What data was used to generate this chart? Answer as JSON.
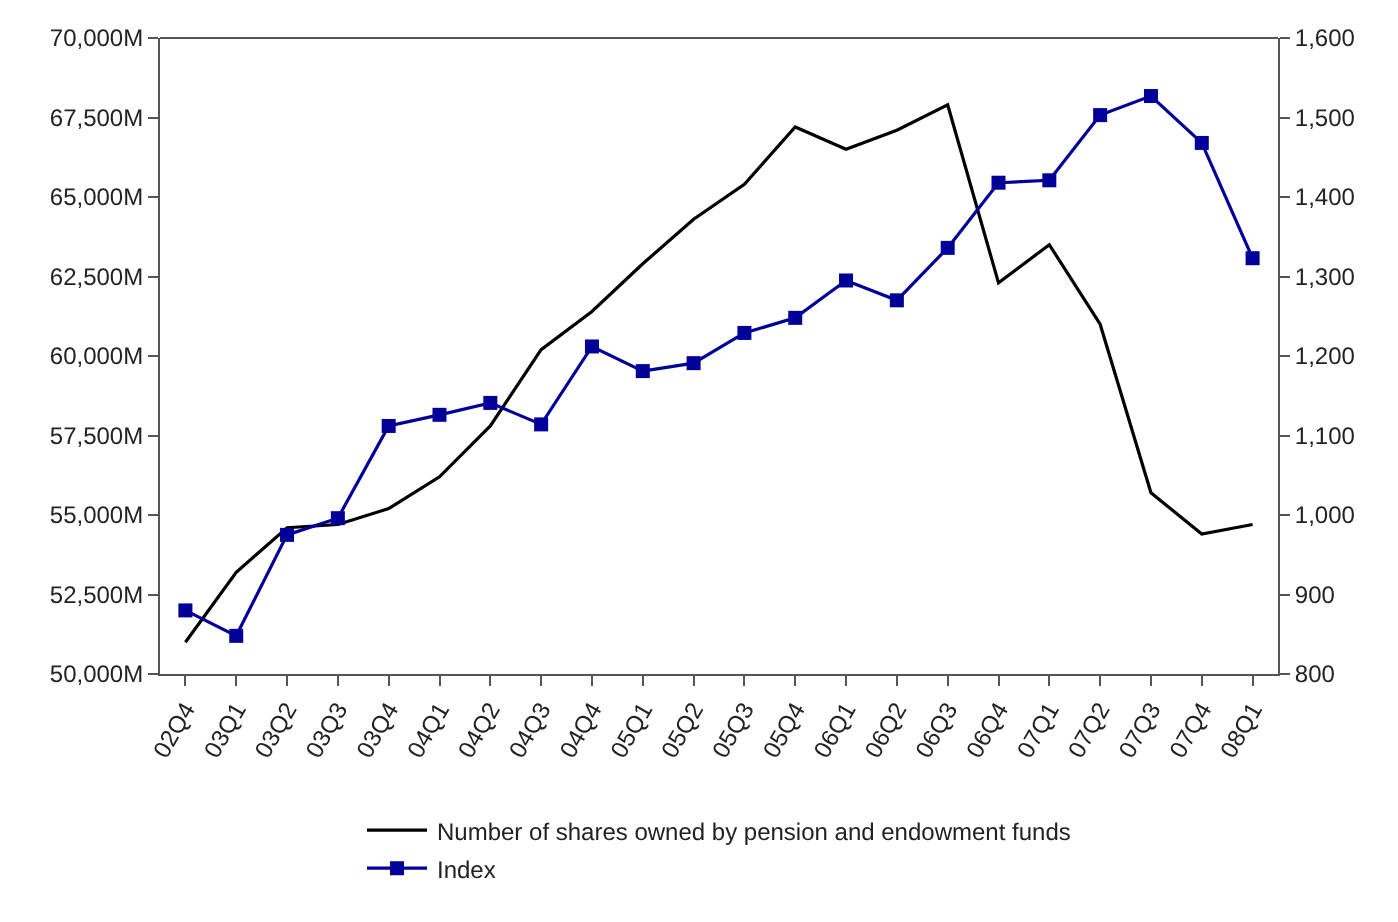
{
  "chart_data": {
    "type": "line",
    "categories": [
      "02Q4",
      "03Q1",
      "03Q2",
      "03Q3",
      "03Q4",
      "04Q1",
      "04Q2",
      "04Q3",
      "04Q4",
      "05Q1",
      "05Q2",
      "05Q3",
      "05Q4",
      "06Q1",
      "06Q2",
      "06Q3",
      "06Q4",
      "07Q1",
      "07Q2",
      "07Q3",
      "07Q4",
      "08Q1"
    ],
    "series": [
      {
        "name": "Number of shares owned by pension and endowment funds",
        "color": "#000000",
        "marker": "none",
        "values": [
          51000,
          53200,
          54600,
          54700,
          55200,
          56200,
          57800,
          60200,
          61400,
          62900,
          64300,
          65400,
          67200,
          66500,
          67100,
          67900,
          62300,
          63500,
          61000,
          55700,
          54400,
          54700
        ]
      },
      {
        "name": "Index",
        "color": "#000099",
        "marker": "square",
        "axis": "y2",
        "values": [
          880,
          848,
          975,
          996,
          1112,
          1126,
          1141,
          1114,
          1212,
          1181,
          1191,
          1229,
          1248,
          1295,
          1270,
          1336,
          1418,
          1421,
          1503,
          1527,
          1468,
          1323
        ]
      }
    ],
    "ylim": [
      50000,
      70000
    ],
    "yticks": [
      {
        "value": 50000,
        "label": "50,000M"
      },
      {
        "value": 52500,
        "label": "52,500M"
      },
      {
        "value": 55000,
        "label": "55,000M"
      },
      {
        "value": 57500,
        "label": "57,500M"
      },
      {
        "value": 60000,
        "label": "60,000M"
      },
      {
        "value": 62500,
        "label": "62,500M"
      },
      {
        "value": 65000,
        "label": "65,000M"
      },
      {
        "value": 67500,
        "label": "67,500M"
      },
      {
        "value": 70000,
        "label": "70,000M"
      }
    ],
    "y2lim": [
      800,
      1600
    ],
    "y2ticks": [
      {
        "value": 800,
        "label": "800"
      },
      {
        "value": 900,
        "label": "900"
      },
      {
        "value": 1000,
        "label": "1,000"
      },
      {
        "value": 1100,
        "label": "1,100"
      },
      {
        "value": 1200,
        "label": "1,200"
      },
      {
        "value": 1300,
        "label": "1,300"
      },
      {
        "value": 1400,
        "label": "1,400"
      },
      {
        "value": 1500,
        "label": "1,500"
      },
      {
        "value": 1600,
        "label": "1,600"
      }
    ],
    "legend": "bottom",
    "line_style": "solid"
  }
}
